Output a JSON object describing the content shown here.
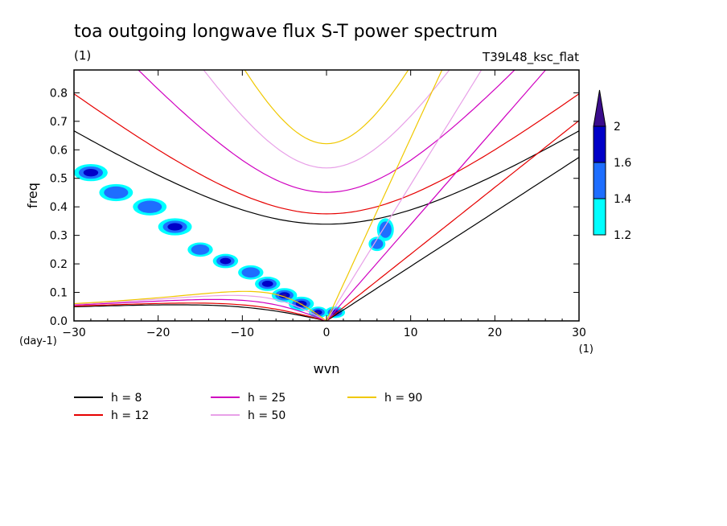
{
  "chart_data": {
    "type": "heatmap",
    "title": "toa outgoing longwave flux S-T power spectrum",
    "subtitle_left": "(1)",
    "subtitle_right": "T39L48_ksc_flat",
    "xlabel": "wvn",
    "ylabel": "freq",
    "x_unit": "(1)",
    "y_unit": "(day-1)",
    "xlim": [
      -30,
      30
    ],
    "ylim": [
      0,
      0.88
    ],
    "xticks": [
      -30,
      -20,
      -10,
      0,
      10,
      20,
      30
    ],
    "yticks": [
      0.0,
      0.1,
      0.2,
      0.3,
      0.4,
      0.5,
      0.6,
      0.7,
      0.8
    ],
    "colorbar": {
      "levels": [
        1.2,
        1.4,
        1.6,
        2
      ],
      "colors": [
        "#00ffff",
        "#1e6eff",
        "#0000c8",
        "#3a0c8c"
      ],
      "extend": "max"
    },
    "contour_fill": [
      {
        "x": -1,
        "y": 0.03,
        "w": 2.2,
        "h": 0.04,
        "level": 3
      },
      {
        "x": 1,
        "y": 0.03,
        "w": 2.4,
        "h": 0.04,
        "level": 3
      },
      {
        "x": -3,
        "y": 0.06,
        "w": 3,
        "h": 0.05,
        "level": 3
      },
      {
        "x": -5,
        "y": 0.09,
        "w": 3,
        "h": 0.05,
        "level": 3
      },
      {
        "x": -7,
        "y": 0.13,
        "w": 3,
        "h": 0.05,
        "level": 2
      },
      {
        "x": -9,
        "y": 0.17,
        "w": 3,
        "h": 0.05,
        "level": 1
      },
      {
        "x": -12,
        "y": 0.21,
        "w": 3,
        "h": 0.05,
        "level": 2
      },
      {
        "x": -15,
        "y": 0.25,
        "w": 3,
        "h": 0.05,
        "level": 1
      },
      {
        "x": -18,
        "y": 0.33,
        "w": 4,
        "h": 0.06,
        "level": 2
      },
      {
        "x": -21,
        "y": 0.4,
        "w": 4,
        "h": 0.06,
        "level": 1
      },
      {
        "x": -25,
        "y": 0.45,
        "w": 4,
        "h": 0.06,
        "level": 1
      },
      {
        "x": -28,
        "y": 0.52,
        "w": 4,
        "h": 0.06,
        "level": 2
      },
      {
        "x": 7,
        "y": 0.32,
        "w": 2,
        "h": 0.08,
        "level": 1
      },
      {
        "x": 6,
        "y": 0.27,
        "w": 2,
        "h": 0.05,
        "level": 1
      }
    ],
    "series": [
      {
        "name": "h =  8",
        "h": 8,
        "color": "#000000"
      },
      {
        "name": "h = 12",
        "h": 12,
        "color": "#e60000"
      },
      {
        "name": "h = 25",
        "h": 25,
        "color": "#d000c0"
      },
      {
        "name": "h = 50",
        "h": 50,
        "color": "#e8a0e8"
      },
      {
        "name": "h = 90",
        "h": 90,
        "color": "#f0c800"
      }
    ]
  }
}
